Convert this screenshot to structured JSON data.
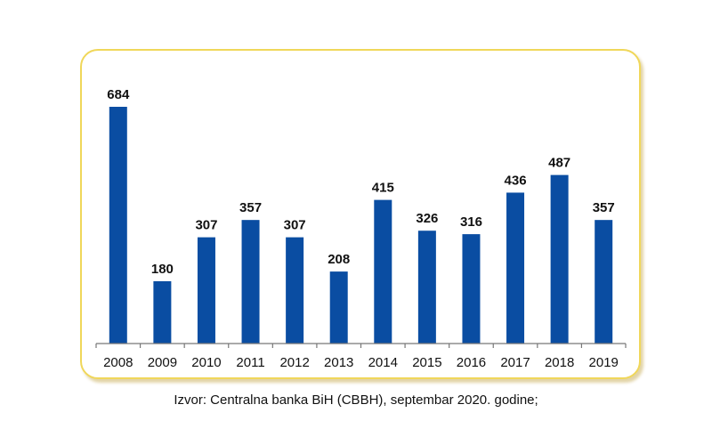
{
  "chart_data": {
    "type": "bar",
    "title": "",
    "xlabel": "",
    "ylabel": "",
    "categories": [
      "2008",
      "2009",
      "2010",
      "2011",
      "2012",
      "2013",
      "2014",
      "2015",
      "2016",
      "2017",
      "2018",
      "2019"
    ],
    "values": [
      684,
      180,
      307,
      357,
      307,
      208,
      415,
      326,
      316,
      436,
      487,
      357
    ],
    "ylim": [
      0,
      700
    ],
    "grid": false,
    "legend": "none",
    "bar_color": "#0a4da2",
    "frame_color": "#f0d75a"
  },
  "source": "Izvor: Centralna banka BiH (CBBH), septembar 2020. godine;"
}
